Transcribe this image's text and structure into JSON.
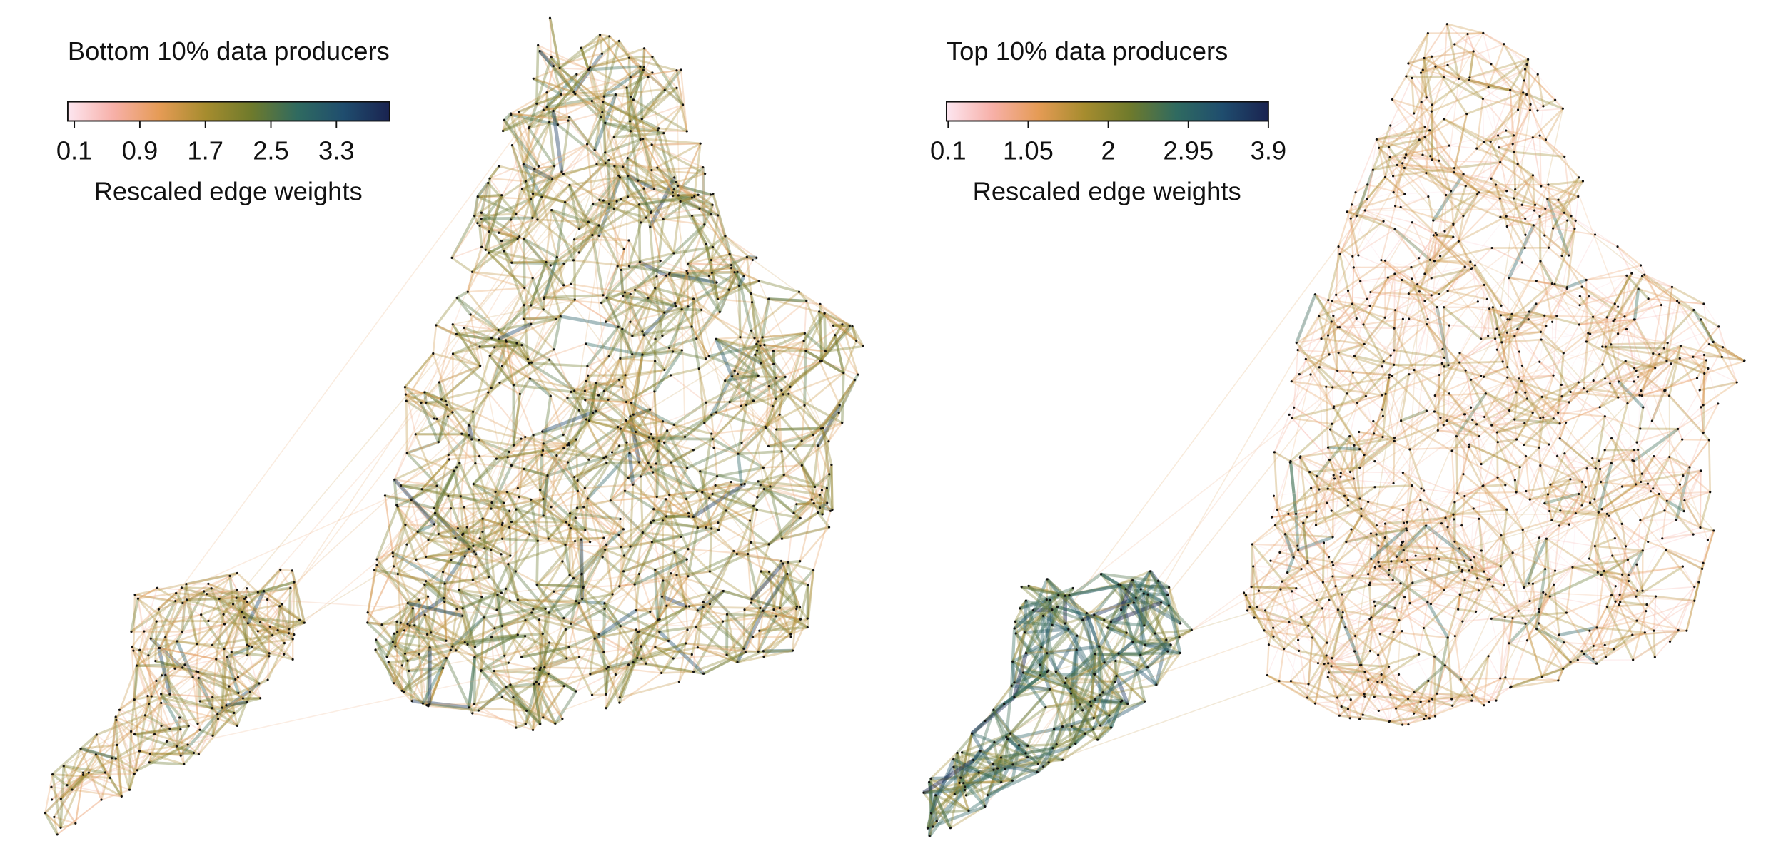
{
  "chart_data": [
    {
      "type": "network",
      "title": "Bottom 10% data producers",
      "colorbar": {
        "label": "Rescaled edge weights",
        "lim": [
          0.02,
          3.95
        ],
        "ticks": [
          0.1,
          0.9,
          1.7,
          2.5,
          3.3
        ],
        "colors": [
          "#fde6f0",
          "#f7b0a8",
          "#e59b55",
          "#a68c2e",
          "#6e7a2c",
          "#2f6a60",
          "#1f4d6e",
          "#1a2350"
        ]
      }
    },
    {
      "type": "network",
      "title": "Top 10% data producers",
      "colorbar": {
        "label": "Rescaled edge weights",
        "lim": [
          0.08,
          3.9
        ],
        "ticks": [
          0.1,
          1.05,
          2,
          2.95,
          3.9
        ],
        "colors": [
          "#fde6f0",
          "#f7b0a8",
          "#e59b55",
          "#a68c2e",
          "#6e7a2c",
          "#2f6a60",
          "#1f4d6e",
          "#1a2350"
        ]
      }
    }
  ]
}
